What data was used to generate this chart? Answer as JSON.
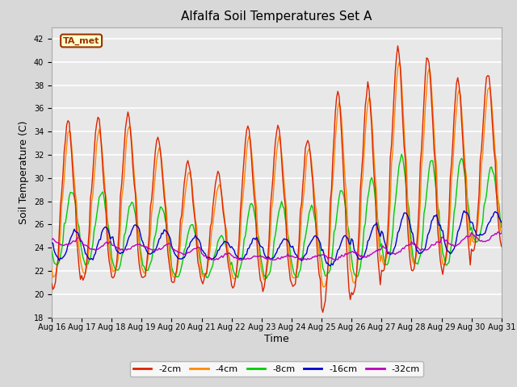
{
  "title": "Alfalfa Soil Temperatures Set A",
  "xlabel": "Time",
  "ylabel": "Soil Temperature (C)",
  "ylim": [
    18,
    43
  ],
  "yticks": [
    18,
    20,
    22,
    24,
    26,
    28,
    30,
    32,
    34,
    36,
    38,
    40,
    42
  ],
  "xlim": [
    0,
    360
  ],
  "xtick_positions": [
    0,
    24,
    48,
    72,
    96,
    120,
    144,
    168,
    192,
    216,
    240,
    264,
    288,
    312,
    336,
    360
  ],
  "xtick_labels": [
    "Aug 16",
    "Aug 17",
    "Aug 18",
    "Aug 19",
    "Aug 20",
    "Aug 21",
    "Aug 22",
    "Aug 23",
    "Aug 24",
    "Aug 25",
    "Aug 26",
    "Aug 27",
    "Aug 28",
    "Aug 29",
    "Aug 30",
    "Aug 31"
  ],
  "colors": {
    "-2cm": "#dd2200",
    "-4cm": "#ff8800",
    "-8cm": "#00cc00",
    "-16cm": "#0000cc",
    "-32cm": "#bb00bb"
  },
  "legend_labels": [
    "-2cm",
    "-4cm",
    "-8cm",
    "-16cm",
    "-32cm"
  ],
  "ta_met_box_color": "#ffffcc",
  "ta_met_border_color": "#993300",
  "ta_met_text_color": "#993300",
  "plot_bg_color": "#e8e8e8",
  "fig_bg_color": "#d8d8d8",
  "title_fontsize": 11,
  "axis_label_fontsize": 9,
  "tick_fontsize": 7,
  "legend_fontsize": 8,
  "linewidth": 1.0
}
